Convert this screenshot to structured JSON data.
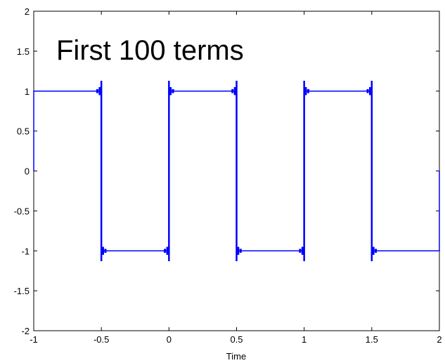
{
  "chart_data": {
    "type": "line",
    "title": "",
    "xlabel": "Time",
    "ylabel": "",
    "xlim": [
      -1,
      2
    ],
    "ylim": [
      -2,
      2
    ],
    "grid": false,
    "annotation": "First 100 terms",
    "x_ticks": [
      -1,
      -0.5,
      0,
      0.5,
      1,
      1.5,
      2
    ],
    "x_tick_labels": [
      "-1",
      "-0.5",
      "0",
      "0.5",
      "1",
      "1.5",
      "2"
    ],
    "y_ticks": [
      2,
      1.5,
      1,
      0.5,
      0,
      -0.5,
      -1,
      -1.5,
      -2
    ],
    "y_tick_labels": [
      "2",
      "1.5",
      "1",
      "0.5",
      "0",
      "-0.5",
      "-1",
      "-1.5",
      "-2"
    ],
    "series": [
      {
        "color": "#0000ff",
        "x": [
          -1,
          -1,
          -0.5,
          -0.5,
          0,
          0,
          0.5,
          0.5,
          1,
          1,
          1.5,
          1.5,
          2,
          2
        ],
        "y": [
          0,
          1,
          1,
          -1,
          -1,
          1,
          1,
          -1,
          -1,
          1,
          1,
          -1,
          -1,
          0
        ]
      }
    ]
  }
}
